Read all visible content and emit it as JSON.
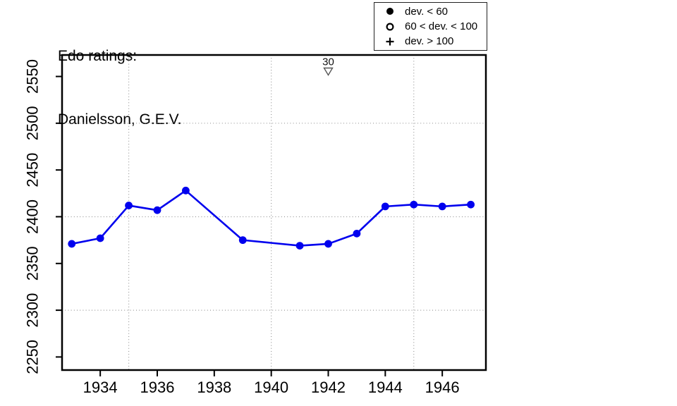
{
  "title": {
    "line1": "Edo ratings:",
    "line2": "Danielsson, G.E.V."
  },
  "legend": {
    "items": [
      {
        "symbol": "filled-circle",
        "label": "dev. < 60"
      },
      {
        "symbol": "open-circle",
        "label": "60 < dev. < 100"
      },
      {
        "symbol": "plus",
        "label": "dev. > 100"
      }
    ]
  },
  "chart_data": {
    "type": "line",
    "title": "Edo ratings: Danielsson, G.E.V.",
    "series": [
      {
        "name": "Edo rating (dev. < 60)",
        "marker": "filled-circle",
        "points": [
          [
            1933,
            2371
          ],
          [
            1934,
            2377
          ],
          [
            1935,
            2412
          ],
          [
            1936,
            2407
          ],
          [
            1937,
            2428
          ],
          [
            1939,
            2375
          ],
          [
            1941,
            2369
          ],
          [
            1942,
            2371
          ],
          [
            1943,
            2382
          ],
          [
            1944,
            2411
          ],
          [
            1945,
            2413
          ],
          [
            1946,
            2411
          ],
          [
            1947,
            2413
          ]
        ]
      }
    ],
    "annotations": [
      {
        "x": 1942,
        "label": "30",
        "marker": "open-triangle-down"
      }
    ],
    "x_ticks": [
      1934,
      1936,
      1938,
      1940,
      1942,
      1944,
      1946
    ],
    "y_ticks": [
      2250,
      2300,
      2350,
      2400,
      2450,
      2500,
      2550
    ],
    "x_gridlines": [
      1935,
      1940,
      1945
    ],
    "y_gridlines": [
      2300,
      2400,
      2500
    ],
    "xlim": [
      1932.66,
      1947.53
    ],
    "ylim": [
      2236,
      2573
    ],
    "grid": true,
    "legend_position": "top-right",
    "line_color": "#0000EE",
    "grid_color": "#999999",
    "marker_outline_color": "#555555"
  }
}
